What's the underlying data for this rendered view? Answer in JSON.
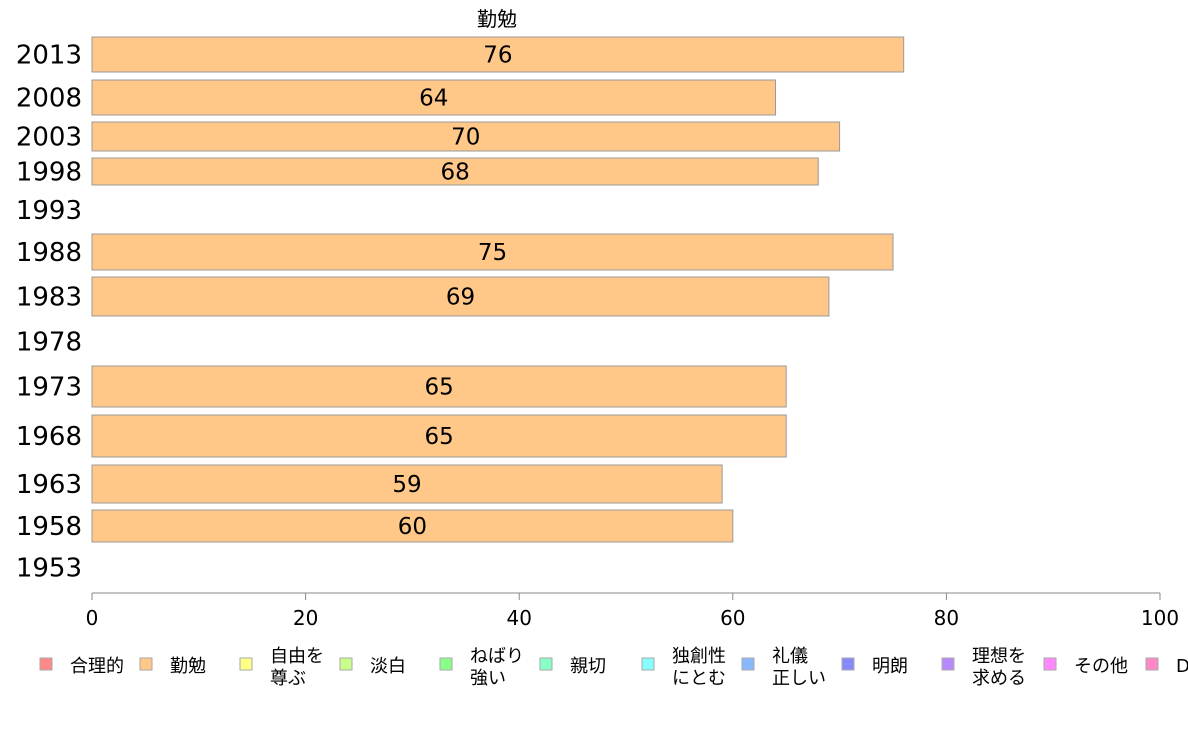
{
  "chart_data": {
    "type": "bar",
    "orientation": "horizontal",
    "title": "勤勉",
    "categories": [
      "2013",
      "2008",
      "2003",
      "1998",
      "1993",
      "1988",
      "1983",
      "1978",
      "1973",
      "1968",
      "1963",
      "1958",
      "1953"
    ],
    "series": [
      {
        "name": "勤勉",
        "color": "#ffc888",
        "values": [
          76,
          64,
          70,
          68,
          null,
          75,
          69,
          null,
          65,
          65,
          59,
          60,
          null
        ]
      }
    ],
    "xlim": [
      0,
      100
    ],
    "xticks": [
      "0",
      "20",
      "40",
      "60",
      "80",
      "100"
    ],
    "grid": false,
    "legend_position": "bottom",
    "legend": [
      {
        "lines": [
          "合理的"
        ],
        "color": "#ff8888"
      },
      {
        "lines": [
          "勤勉"
        ],
        "color": "#ffc888"
      },
      {
        "lines": [
          "自由を",
          "尊ぶ"
        ],
        "color": "#ffff88"
      },
      {
        "lines": [
          "淡白"
        ],
        "color": "#c8ff88"
      },
      {
        "lines": [
          "ねばり",
          "強い"
        ],
        "color": "#88ff88"
      },
      {
        "lines": [
          "親切"
        ],
        "color": "#88ffc8"
      },
      {
        "lines": [
          "独創性",
          "にとむ"
        ],
        "color": "#88ffff"
      },
      {
        "lines": [
          "礼儀",
          "正しい"
        ],
        "color": "#88b8ff"
      },
      {
        "lines": [
          "明朗"
        ],
        "color": "#8888ff"
      },
      {
        "lines": [
          "理想を",
          "求める"
        ],
        "color": "#b888ff"
      },
      {
        "lines": [
          "その他"
        ],
        "color": "#ff88ff"
      },
      {
        "lines": [
          "D"
        ],
        "color": "#ff88c8"
      }
    ]
  }
}
